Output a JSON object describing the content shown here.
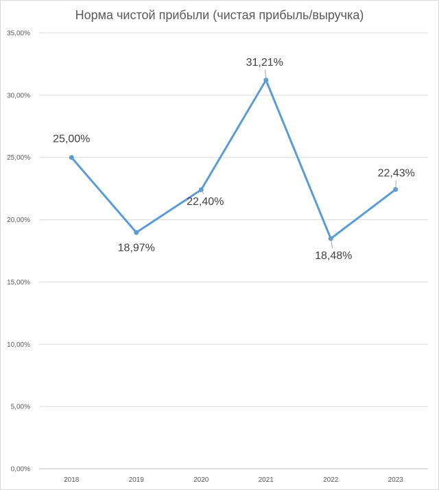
{
  "chart_data": {
    "type": "line",
    "title": "Норма чистой прибыли (чистая прибыль/выручка)",
    "categories": [
      "2018",
      "2019",
      "2020",
      "2021",
      "2022",
      "2023"
    ],
    "series": [
      {
        "values": [
          25.0,
          18.97,
          22.4,
          31.21,
          18.48,
          22.43
        ],
        "data_labels": [
          "25,00%",
          "18,97%",
          "22,40%",
          "31,21%",
          "18,48%",
          "22,43%"
        ],
        "color": "#5B9BD5"
      }
    ],
    "ylim": [
      0,
      35
    ],
    "y_ticks": [
      "0,00%",
      "5,00%",
      "10,00%",
      "15,00%",
      "20,00%",
      "25,00%",
      "30,00%",
      "35,00%"
    ],
    "grid": true,
    "legend": "none",
    "colors": {
      "gridline": "#d9d9d9",
      "axis": "#bfbfbf",
      "border": "#d9d9d9",
      "leader": "#a6a6a6"
    }
  }
}
